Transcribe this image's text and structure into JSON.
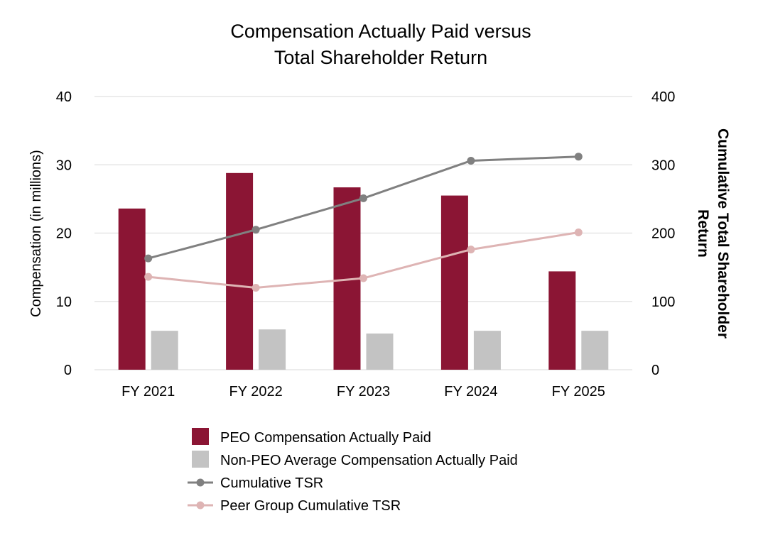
{
  "chart_data": {
    "type": "bar",
    "title_lines": [
      "Compensation Actually Paid versus",
      "Total Shareholder Return"
    ],
    "categories": [
      "FY 2021",
      "FY 2022",
      "FY 2023",
      "FY 2024",
      "FY 2025"
    ],
    "ylabel": "Compensation (in millions)",
    "y2label_lines": [
      "Cumulative Total Shareholder",
      "Return"
    ],
    "ylim": [
      0,
      40
    ],
    "y2lim": [
      0,
      400
    ],
    "yticks": [
      "0",
      "10",
      "20",
      "30",
      "40"
    ],
    "y2ticks": [
      "0",
      "100",
      "200",
      "300",
      "400"
    ],
    "grid": true,
    "legend_position": "bottom",
    "series": [
      {
        "name": "PEO Compensation Actually Paid",
        "kind": "bar",
        "axis": "left",
        "color": "#8b1534",
        "values": [
          23.6,
          28.8,
          26.7,
          25.5,
          14.4
        ]
      },
      {
        "name": "Non-PEO Average Compensation Actually Paid",
        "kind": "bar",
        "axis": "left",
        "color": "#c3c3c3",
        "values": [
          5.7,
          5.9,
          5.3,
          5.7,
          5.7
        ]
      },
      {
        "name": "Cumulative TSR",
        "kind": "line",
        "axis": "right",
        "color": "#808080",
        "values": [
          163,
          205,
          251,
          306,
          312
        ]
      },
      {
        "name": "Peer Group Cumulative TSR",
        "kind": "line",
        "axis": "right",
        "color": "#deb4b4",
        "values": [
          136,
          120,
          134,
          176,
          201
        ]
      }
    ]
  }
}
